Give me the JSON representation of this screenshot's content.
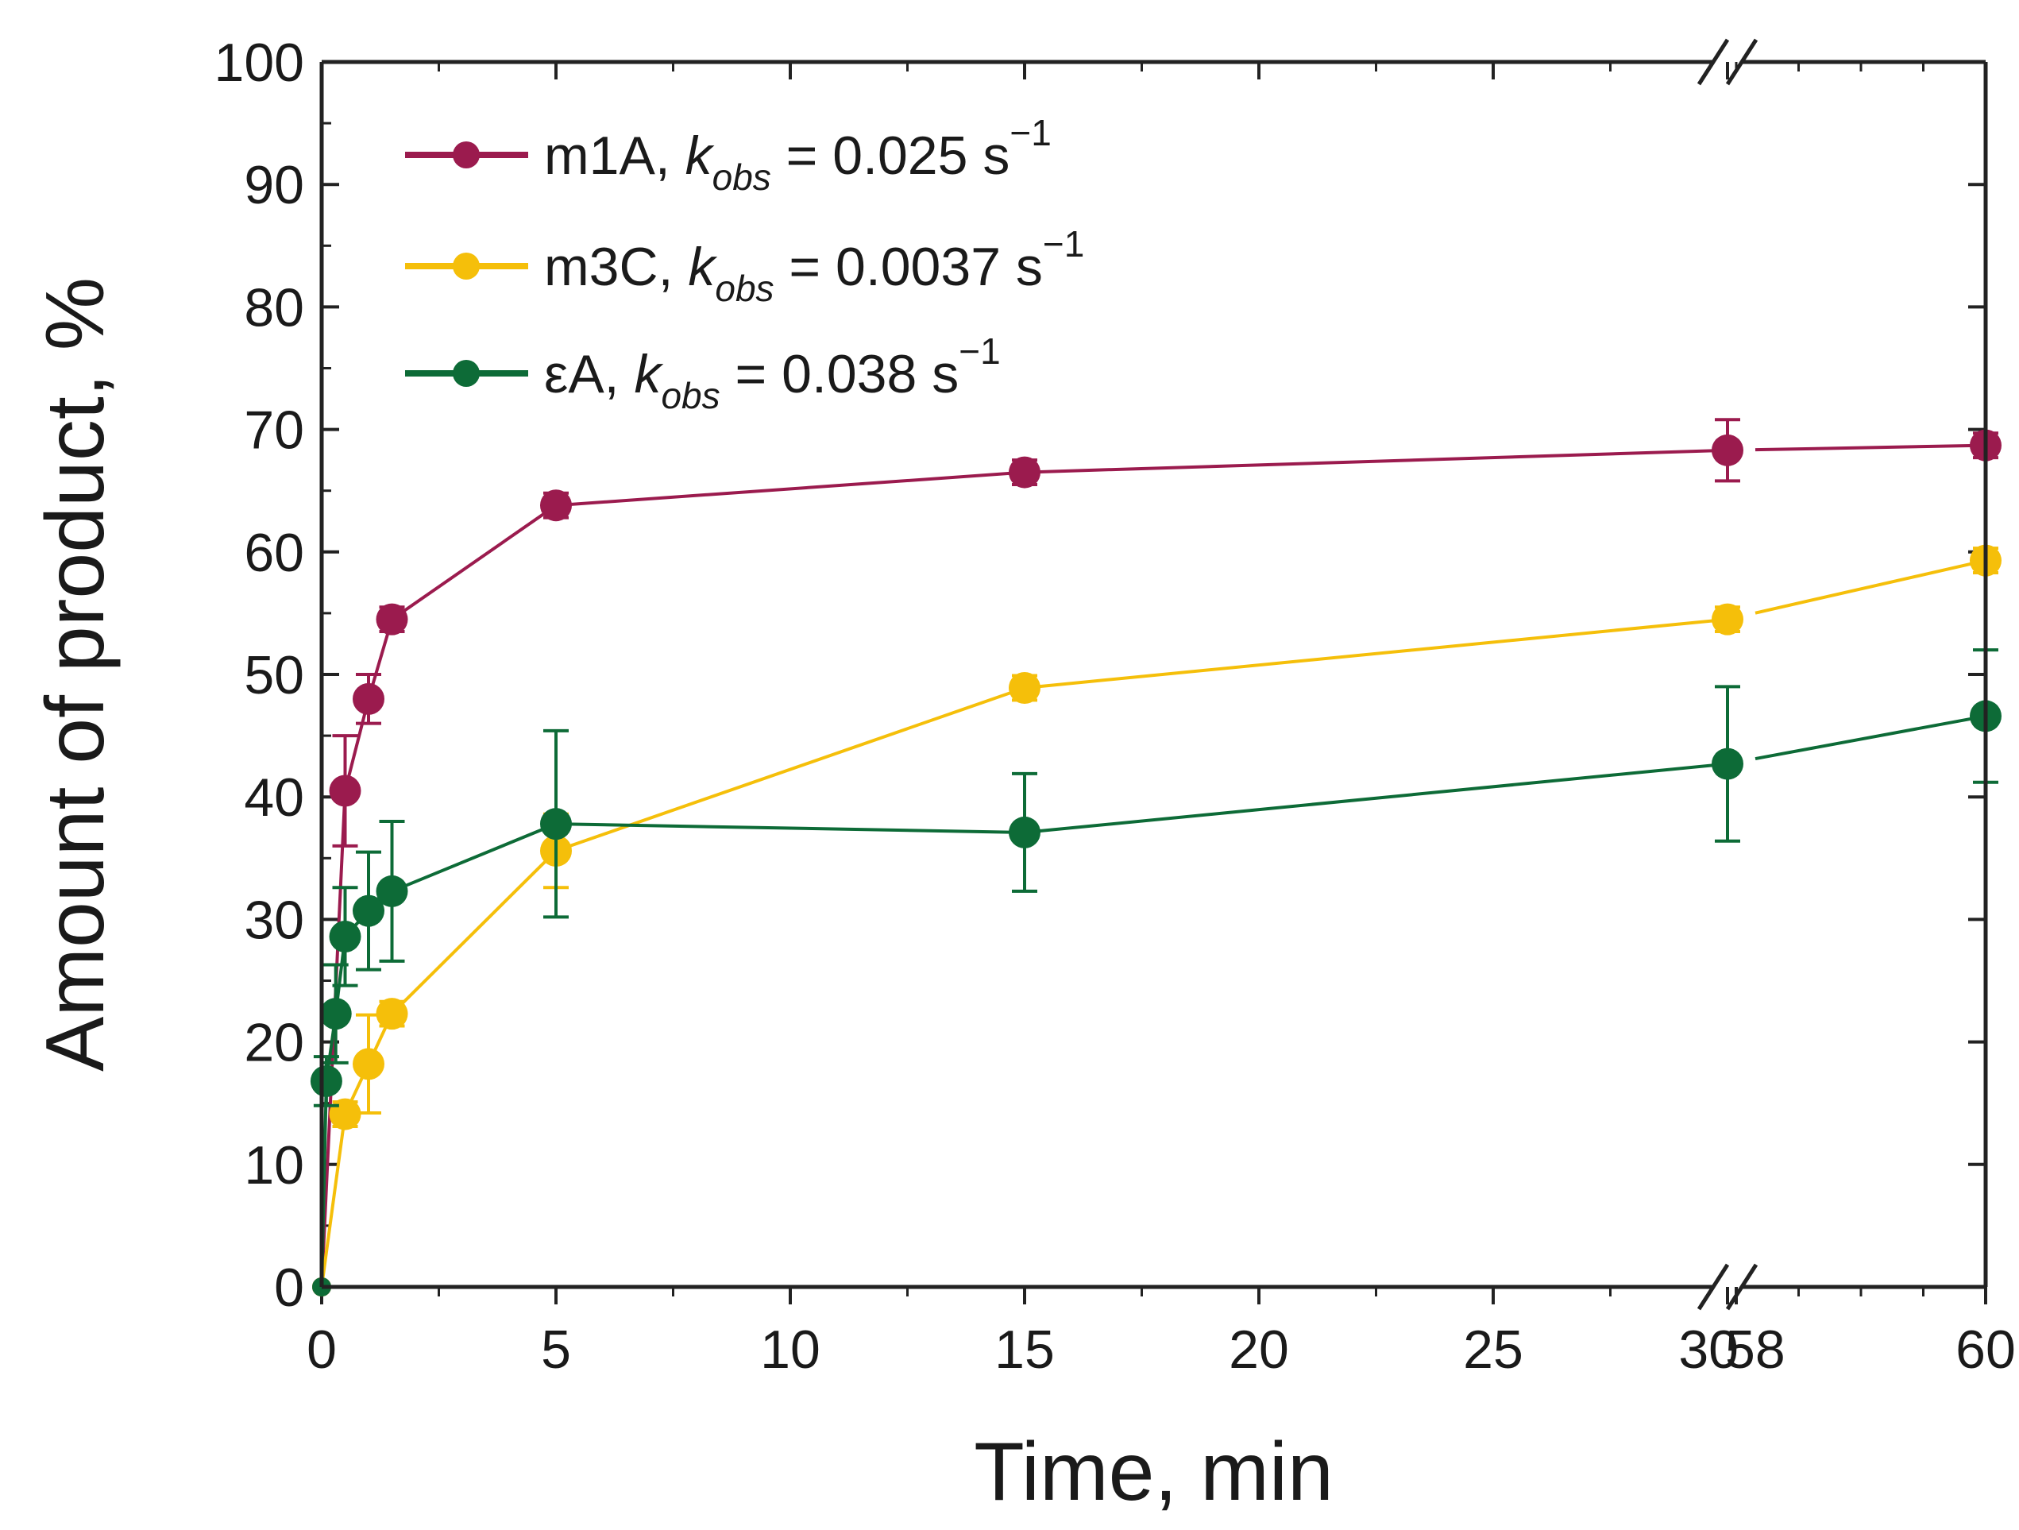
{
  "chart_data": {
    "type": "line",
    "xlabel": "Time, min",
    "ylabel": "Amount of product, %",
    "ylim": [
      0,
      100
    ],
    "y_ticks": [
      "0",
      "10",
      "20",
      "30",
      "40",
      "50",
      "60",
      "70",
      "80",
      "90",
      "100"
    ],
    "x_axis": {
      "segment1_range": [
        0,
        30
      ],
      "segment2_range": [
        58,
        60
      ],
      "tick_labels": [
        {
          "value": 0,
          "label": "0"
        },
        {
          "value": 5,
          "label": "5"
        },
        {
          "value": 10,
          "label": "10"
        },
        {
          "value": 15,
          "label": "15"
        },
        {
          "value": 20,
          "label": "20"
        },
        {
          "value": 25,
          "label": "25"
        },
        {
          "value": 30,
          "label": "30"
        },
        {
          "value": 58,
          "label": "58"
        },
        {
          "value": 60,
          "label": "60"
        }
      ],
      "axis_break": "between 30 and 58"
    },
    "legend_position": "top-left",
    "series": [
      {
        "name": "m1A",
        "rate_prefix": "m1A, ",
        "k_symbol": "k",
        "k_subscript": "obs",
        "rate_value": " = 0.025 s",
        "rate_exponent": "−1",
        "color": "#9b1b4e",
        "points": [
          {
            "x": 0,
            "y": 0,
            "err": 0
          },
          {
            "x": 0.5,
            "y": 40.5,
            "err": 4.5
          },
          {
            "x": 1,
            "y": 48,
            "err": 2
          },
          {
            "x": 1.5,
            "y": 54.5,
            "err": 1
          },
          {
            "x": 5,
            "y": 63.8,
            "err": 1
          },
          {
            "x": 15,
            "y": 66.5,
            "err": 1
          },
          {
            "x": 30,
            "y": 68.3,
            "err": 2.5
          },
          {
            "x": 60,
            "y": 68.7,
            "err": 1
          }
        ]
      },
      {
        "name": "m3C",
        "rate_prefix": "m3C, ",
        "k_symbol": "k",
        "k_subscript": "obs",
        "rate_value": " = 0.0037 s",
        "rate_exponent": "−1",
        "color": "#f5bf0a",
        "points": [
          {
            "x": 0,
            "y": 0,
            "err": 0
          },
          {
            "x": 0.5,
            "y": 14.1,
            "err": 1
          },
          {
            "x": 1,
            "y": 18.2,
            "err": 4
          },
          {
            "x": 1.5,
            "y": 22.3,
            "err": 1
          },
          {
            "x": 5,
            "y": 35.6,
            "err": 3
          },
          {
            "x": 15,
            "y": 48.9,
            "err": 1
          },
          {
            "x": 30,
            "y": 54.5,
            "err": 1
          },
          {
            "x": 60,
            "y": 59.3,
            "err": 1
          }
        ]
      },
      {
        "name": "εA",
        "rate_prefix": "εA, ",
        "k_symbol": "k",
        "k_subscript": "obs",
        "rate_value": " = 0.038 s",
        "rate_exponent": "−1",
        "color": "#0d6b37",
        "points": [
          {
            "x": 0,
            "y": 0,
            "err": 0
          },
          {
            "x": 0.1,
            "y": 16.8,
            "err": 2
          },
          {
            "x": 0.3,
            "y": 22.3,
            "err": 4
          },
          {
            "x": 0.5,
            "y": 28.6,
            "err": 4
          },
          {
            "x": 1,
            "y": 30.7,
            "err": 4.8
          },
          {
            "x": 1.5,
            "y": 32.3,
            "err": 5.7
          },
          {
            "x": 5,
            "y": 37.8,
            "err": 7.6
          },
          {
            "x": 15,
            "y": 37.1,
            "err": 4.8
          },
          {
            "x": 30,
            "y": 42.7,
            "err": 6.3
          },
          {
            "x": 60,
            "y": 46.6,
            "err": 5.4
          }
        ]
      }
    ]
  }
}
